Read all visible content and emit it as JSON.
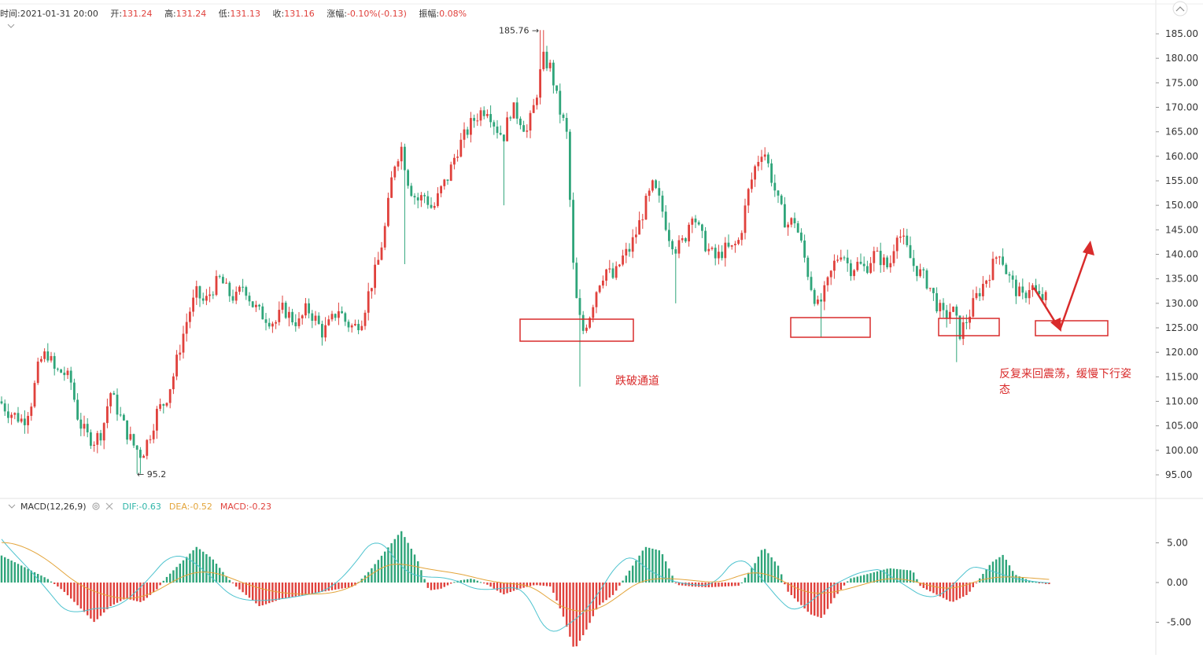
{
  "info_bar": {
    "time_label": "时间:",
    "time_value": "2021-01-31 20:00",
    "open_label": "开:",
    "open_value": "131.24",
    "high_label": "高:",
    "high_value": "131.24",
    "low_label": "低:",
    "low_value": "131.13",
    "close_label": "收:",
    "close_value": "131.16",
    "change_label": "涨幅:",
    "change_value": "-0.10%(-0.13)",
    "amplitude_label": "振幅:",
    "amplitude_value": "0.08%"
  },
  "macd_bar": {
    "name": "MACD(12,26,9)",
    "dif": "DIF:-0.63",
    "dea": "DEA:-0.52",
    "macd": "MACD:-0.23"
  },
  "colors": {
    "up": "#e0413c",
    "down": "#2fa57a",
    "dif_line": "#4ec3cf",
    "dea_line": "#e3a43a",
    "annotation": "#d92b2b"
  },
  "chart_data": [
    {
      "type": "candlestick",
      "y_axis_ticks": [
        "185.00",
        "180.00",
        "175.00",
        "170.00",
        "165.00",
        "160.00",
        "155.00",
        "150.00",
        "145.00",
        "140.00",
        "135.00",
        "130.00",
        "125.00",
        "120.00",
        "115.00",
        "110.00",
        "105.00",
        "100.00",
        "95.00"
      ],
      "ylim": [
        91,
        188
      ],
      "high_marker": "185.76",
      "low_marker": "95.2",
      "approx_close_path": [
        [
          0,
          110
        ],
        [
          10,
          108
        ],
        [
          20,
          107
        ],
        [
          30,
          106
        ],
        [
          40,
          110
        ],
        [
          50,
          118
        ],
        [
          60,
          120
        ],
        [
          70,
          116
        ],
        [
          80,
          116
        ],
        [
          90,
          114
        ],
        [
          100,
          106
        ],
        [
          110,
          103
        ],
        [
          120,
          102
        ],
        [
          130,
          104
        ],
        [
          140,
          112
        ],
        [
          150,
          108
        ],
        [
          160,
          104
        ],
        [
          170,
          101
        ],
        [
          180,
          99
        ],
        [
          190,
          103
        ],
        [
          200,
          108
        ],
        [
          210,
          110
        ],
        [
          220,
          115
        ],
        [
          230,
          122
        ],
        [
          240,
          128
        ],
        [
          250,
          132
        ],
        [
          260,
          130
        ],
        [
          270,
          133
        ],
        [
          280,
          135
        ],
        [
          290,
          132
        ],
        [
          300,
          131
        ],
        [
          310,
          134
        ],
        [
          320,
          130
        ],
        [
          330,
          128
        ],
        [
          340,
          127
        ],
        [
          350,
          126
        ],
        [
          360,
          129
        ],
        [
          370,
          127
        ],
        [
          380,
          126
        ],
        [
          390,
          129
        ],
        [
          400,
          127
        ],
        [
          410,
          124
        ],
        [
          420,
          126
        ],
        [
          430,
          129
        ],
        [
          440,
          126
        ],
        [
          450,
          125
        ],
        [
          460,
          127
        ],
        [
          470,
          133
        ],
        [
          480,
          138
        ],
        [
          490,
          146
        ],
        [
          500,
          158
        ],
        [
          510,
          162
        ],
        [
          520,
          154
        ],
        [
          530,
          151
        ],
        [
          540,
          152
        ],
        [
          550,
          149
        ],
        [
          560,
          153
        ],
        [
          570,
          156
        ],
        [
          580,
          161
        ],
        [
          590,
          164
        ],
        [
          600,
          167
        ],
        [
          610,
          169
        ],
        [
          620,
          170
        ],
        [
          630,
          166
        ],
        [
          640,
          164
        ],
        [
          650,
          170
        ],
        [
          660,
          168
        ],
        [
          670,
          165
        ],
        [
          680,
          171
        ],
        [
          690,
          180
        ],
        [
          700,
          178
        ],
        [
          710,
          170
        ],
        [
          720,
          165
        ],
        [
          730,
          133
        ],
        [
          740,
          124
        ],
        [
          750,
          128
        ],
        [
          760,
          134
        ],
        [
          770,
          137
        ],
        [
          780,
          135
        ],
        [
          790,
          139
        ],
        [
          800,
          141
        ],
        [
          810,
          145
        ],
        [
          820,
          150
        ],
        [
          830,
          154
        ],
        [
          840,
          150
        ],
        [
          850,
          144
        ],
        [
          860,
          141
        ],
        [
          870,
          143
        ],
        [
          880,
          149
        ],
        [
          890,
          144
        ],
        [
          900,
          141
        ],
        [
          910,
          139
        ],
        [
          920,
          141
        ],
        [
          930,
          141
        ],
        [
          940,
          143
        ],
        [
          950,
          152
        ],
        [
          960,
          158
        ],
        [
          970,
          162
        ],
        [
          980,
          156
        ],
        [
          990,
          150
        ],
        [
          1000,
          146
        ],
        [
          1010,
          147
        ],
        [
          1020,
          141
        ],
        [
          1030,
          134
        ],
        [
          1040,
          129
        ],
        [
          1050,
          133
        ],
        [
          1060,
          138
        ],
        [
          1070,
          141
        ],
        [
          1080,
          137
        ],
        [
          1090,
          138
        ],
        [
          1100,
          137
        ],
        [
          1110,
          140
        ],
        [
          1120,
          139
        ],
        [
          1130,
          137
        ],
        [
          1140,
          145
        ],
        [
          1150,
          142
        ],
        [
          1160,
          138
        ],
        [
          1170,
          136
        ],
        [
          1180,
          134
        ],
        [
          1190,
          130
        ],
        [
          1200,
          127
        ],
        [
          1210,
          129
        ],
        [
          1220,
          124
        ],
        [
          1230,
          127
        ],
        [
          1240,
          131
        ],
        [
          1250,
          134
        ],
        [
          1260,
          137
        ],
        [
          1270,
          141
        ],
        [
          1280,
          136
        ],
        [
          1290,
          133
        ],
        [
          1300,
          131
        ],
        [
          1310,
          134
        ],
        [
          1320,
          131
        ],
        [
          1330,
          131
        ]
      ],
      "annotations": [
        {
          "text": "跌破通道"
        },
        {
          "text": "反复来回震荡，缓慢下行姿"
        },
        {
          "text": "态"
        }
      ]
    },
    {
      "type": "macd",
      "y_axis_ticks": [
        "5.00",
        "0.00",
        "-5.00"
      ],
      "ylim": [
        -9,
        9
      ],
      "approx_hist_path": [
        [
          0,
          3.5
        ],
        [
          30,
          2
        ],
        [
          60,
          0.5
        ],
        [
          80,
          -1
        ],
        [
          100,
          -3
        ],
        [
          120,
          -5
        ],
        [
          140,
          -3
        ],
        [
          160,
          -2
        ],
        [
          180,
          -2.5
        ],
        [
          200,
          -0.8
        ],
        [
          210,
          0.5
        ],
        [
          230,
          2.5
        ],
        [
          250,
          4.5
        ],
        [
          270,
          3
        ],
        [
          290,
          0.5
        ],
        [
          300,
          -0.5
        ],
        [
          330,
          -3
        ],
        [
          360,
          -2
        ],
        [
          390,
          -1.5
        ],
        [
          420,
          -1
        ],
        [
          450,
          -0.5
        ],
        [
          470,
          1.5
        ],
        [
          490,
          4
        ],
        [
          510,
          6.5
        ],
        [
          530,
          3
        ],
        [
          545,
          -1
        ],
        [
          560,
          -0.8
        ],
        [
          580,
          0.2
        ],
        [
          600,
          0.5
        ],
        [
          620,
          -0.3
        ],
        [
          640,
          -1.5
        ],
        [
          660,
          -0.8
        ],
        [
          680,
          -0.3
        ],
        [
          700,
          -0.5
        ],
        [
          715,
          -4
        ],
        [
          730,
          -8.5
        ],
        [
          745,
          -6
        ],
        [
          760,
          -3
        ],
        [
          780,
          -1.5
        ],
        [
          800,
          1.5
        ],
        [
          820,
          4.5
        ],
        [
          840,
          4
        ],
        [
          860,
          -0.3
        ],
        [
          880,
          -0.5
        ],
        [
          900,
          -0.6
        ],
        [
          940,
          -0.4
        ],
        [
          960,
          2.5
        ],
        [
          970,
          4.5
        ],
        [
          990,
          2
        ],
        [
          1000,
          -1
        ],
        [
          1030,
          -4
        ],
        [
          1045,
          -4.5
        ],
        [
          1060,
          -2
        ],
        [
          1080,
          0.5
        ],
        [
          1100,
          1
        ],
        [
          1130,
          1.8
        ],
        [
          1160,
          1.5
        ],
        [
          1170,
          -0.5
        ],
        [
          1190,
          -1.5
        ],
        [
          1210,
          -2.5
        ],
        [
          1230,
          -1.5
        ],
        [
          1245,
          0.5
        ],
        [
          1260,
          2.5
        ],
        [
          1275,
          3.5
        ],
        [
          1290,
          1
        ],
        [
          1310,
          0.2
        ],
        [
          1330,
          -0.2
        ]
      ]
    }
  ]
}
